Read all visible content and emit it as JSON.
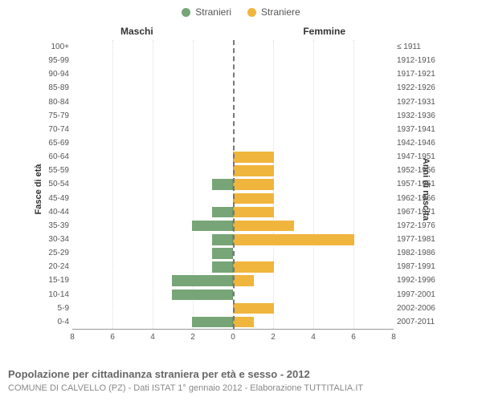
{
  "legend": {
    "male": "Stranieri",
    "female": "Straniere"
  },
  "columns": {
    "left": "Maschi",
    "right": "Femmine"
  },
  "y_axis_left": "Fasce di età",
  "y_axis_right": "Anni di nascita",
  "colors": {
    "male": "#77a577",
    "female": "#f0b53c",
    "grid": "#dddddd",
    "axis": "#999999",
    "center_dash": "#777777",
    "background": "#ffffff",
    "text": "#555555"
  },
  "x_axis": {
    "max": 8,
    "ticks": [
      8,
      6,
      4,
      2,
      0,
      2,
      4,
      6,
      8
    ]
  },
  "footer_title": "Popolazione per cittadinanza straniera per età e sesso - 2012",
  "footer_sub": "COMUNE DI CALVELLO (PZ) - Dati ISTAT 1° gennaio 2012 - Elaborazione TUTTITALIA.IT",
  "rows": [
    {
      "age": "100+",
      "birth": "≤ 1911",
      "m": 0,
      "f": 0
    },
    {
      "age": "95-99",
      "birth": "1912-1916",
      "m": 0,
      "f": 0
    },
    {
      "age": "90-94",
      "birth": "1917-1921",
      "m": 0,
      "f": 0
    },
    {
      "age": "85-89",
      "birth": "1922-1926",
      "m": 0,
      "f": 0
    },
    {
      "age": "80-84",
      "birth": "1927-1931",
      "m": 0,
      "f": 0
    },
    {
      "age": "75-79",
      "birth": "1932-1936",
      "m": 0,
      "f": 0
    },
    {
      "age": "70-74",
      "birth": "1937-1941",
      "m": 0,
      "f": 0
    },
    {
      "age": "65-69",
      "birth": "1942-1946",
      "m": 0,
      "f": 0
    },
    {
      "age": "60-64",
      "birth": "1947-1951",
      "m": 0,
      "f": 2
    },
    {
      "age": "55-59",
      "birth": "1952-1956",
      "m": 0,
      "f": 2
    },
    {
      "age": "50-54",
      "birth": "1957-1961",
      "m": 1,
      "f": 2
    },
    {
      "age": "45-49",
      "birth": "1962-1966",
      "m": 0,
      "f": 2
    },
    {
      "age": "40-44",
      "birth": "1967-1971",
      "m": 1,
      "f": 2
    },
    {
      "age": "35-39",
      "birth": "1972-1976",
      "m": 2,
      "f": 3
    },
    {
      "age": "30-34",
      "birth": "1977-1981",
      "m": 1,
      "f": 6
    },
    {
      "age": "25-29",
      "birth": "1982-1986",
      "m": 1,
      "f": 0
    },
    {
      "age": "20-24",
      "birth": "1987-1991",
      "m": 1,
      "f": 2
    },
    {
      "age": "15-19",
      "birth": "1992-1996",
      "m": 3,
      "f": 1
    },
    {
      "age": "10-14",
      "birth": "1997-2001",
      "m": 3,
      "f": 0
    },
    {
      "age": "5-9",
      "birth": "2002-2006",
      "m": 0,
      "f": 2
    },
    {
      "age": "0-4",
      "birth": "2007-2011",
      "m": 2,
      "f": 1
    }
  ]
}
